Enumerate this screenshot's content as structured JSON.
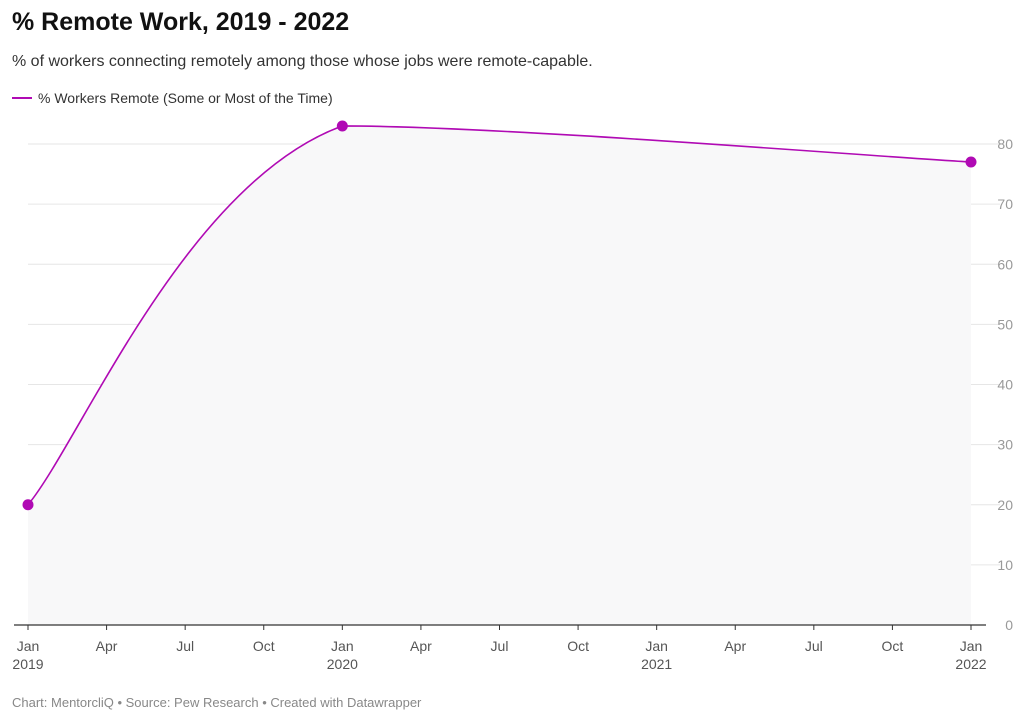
{
  "title": "% Remote Work, 2019 - 2022",
  "subtitle": "% of workers connecting remotely among those whose jobs were remote-capable.",
  "footer": "Chart: MentorcliQ • Source: Pew Research • Created with Datawrapper",
  "colors": {
    "series": "#b00ab4",
    "area": "#f8f8f9",
    "grid": "#e6e6e6",
    "axis": "#333333"
  },
  "chart_data": {
    "type": "line",
    "title": "% Remote Work, 2019 - 2022",
    "subtitle": "% of workers connecting remotely among those whose jobs were remote-capable.",
    "xlabel": "",
    "ylabel": "",
    "ylim": [
      0,
      80
    ],
    "y_ticks": [
      0,
      10,
      20,
      30,
      40,
      50,
      60,
      70,
      80
    ],
    "y_axis_side": "right",
    "grid": "horizontal",
    "legend_position": "top-left",
    "x_ticks": [
      {
        "label": "Jan",
        "year": "2019"
      },
      {
        "label": "Apr",
        "year": ""
      },
      {
        "label": "Jul",
        "year": ""
      },
      {
        "label": "Oct",
        "year": ""
      },
      {
        "label": "Jan",
        "year": "2020"
      },
      {
        "label": "Apr",
        "year": ""
      },
      {
        "label": "Jul",
        "year": ""
      },
      {
        "label": "Oct",
        "year": ""
      },
      {
        "label": "Jan",
        "year": "2021"
      },
      {
        "label": "Apr",
        "year": ""
      },
      {
        "label": "Jul",
        "year": ""
      },
      {
        "label": "Oct",
        "year": ""
      },
      {
        "label": "Jan",
        "year": "2022"
      }
    ],
    "series": [
      {
        "name": "% Workers Remote (Some or Most of the Time)",
        "x": [
          "2019-01",
          "2020-01",
          "2022-01"
        ],
        "values": [
          20,
          83,
          77
        ]
      }
    ]
  }
}
